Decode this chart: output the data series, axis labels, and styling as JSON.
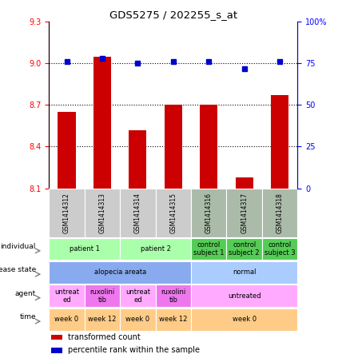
{
  "title": "GDS5275 / 202255_s_at",
  "samples": [
    "GSM1414312",
    "GSM1414313",
    "GSM1414314",
    "GSM1414315",
    "GSM1414316",
    "GSM1414317",
    "GSM1414318"
  ],
  "transformed_count": [
    8.65,
    9.05,
    8.52,
    8.7,
    8.7,
    8.18,
    8.77
  ],
  "percentile_rank": [
    76,
    78,
    75,
    76,
    76,
    72,
    76
  ],
  "ylim_left": [
    8.1,
    9.3
  ],
  "ylim_right": [
    0,
    100
  ],
  "yticks_left": [
    8.1,
    8.4,
    8.7,
    9.0,
    9.3
  ],
  "yticks_right": [
    0,
    25,
    50,
    75,
    100
  ],
  "bar_color": "#cc0000",
  "dot_color": "#0000cc",
  "bar_bottom": 8.1,
  "individual_row": {
    "label": "individual",
    "cells": [
      {
        "text": "patient 1",
        "span": [
          0,
          1
        ],
        "color": "#aaffaa"
      },
      {
        "text": "patient 2",
        "span": [
          2,
          3
        ],
        "color": "#aaffaa"
      },
      {
        "text": "control\nsubject 1",
        "span": [
          4,
          4
        ],
        "color": "#55cc55"
      },
      {
        "text": "control\nsubject 2",
        "span": [
          5,
          5
        ],
        "color": "#55cc55"
      },
      {
        "text": "control\nsubject 3",
        "span": [
          6,
          6
        ],
        "color": "#55cc55"
      }
    ]
  },
  "disease_state_row": {
    "label": "disease state",
    "cells": [
      {
        "text": "alopecia areata",
        "span": [
          0,
          3
        ],
        "color": "#88aaee"
      },
      {
        "text": "normal",
        "span": [
          4,
          6
        ],
        "color": "#aaccff"
      }
    ]
  },
  "agent_row": {
    "label": "agent",
    "cells": [
      {
        "text": "untreat\ned",
        "span": [
          0,
          0
        ],
        "color": "#ffaaff"
      },
      {
        "text": "ruxolini\ntib",
        "span": [
          1,
          1
        ],
        "color": "#ee77ee"
      },
      {
        "text": "untreat\ned",
        "span": [
          2,
          2
        ],
        "color": "#ffaaff"
      },
      {
        "text": "ruxolini\ntib",
        "span": [
          3,
          3
        ],
        "color": "#ee77ee"
      },
      {
        "text": "untreated",
        "span": [
          4,
          6
        ],
        "color": "#ffaaff"
      }
    ]
  },
  "time_row": {
    "label": "time",
    "cells": [
      {
        "text": "week 0",
        "span": [
          0,
          0
        ],
        "color": "#ffcc88"
      },
      {
        "text": "week 12",
        "span": [
          1,
          1
        ],
        "color": "#ffcc88"
      },
      {
        "text": "week 0",
        "span": [
          2,
          2
        ],
        "color": "#ffcc88"
      },
      {
        "text": "week 12",
        "span": [
          3,
          3
        ],
        "color": "#ffcc88"
      },
      {
        "text": "week 0",
        "span": [
          4,
          6
        ],
        "color": "#ffcc88"
      }
    ]
  },
  "sample_bg_colors": [
    "#cccccc",
    "#cccccc",
    "#cccccc",
    "#cccccc",
    "#aabbaa",
    "#aabbaa",
    "#aabbaa"
  ],
  "legend_items": [
    {
      "color": "#cc0000",
      "label": "transformed count"
    },
    {
      "color": "#0000cc",
      "label": "percentile rank within the sample"
    }
  ],
  "hline_values": [
    8.4,
    8.7,
    9.0
  ]
}
